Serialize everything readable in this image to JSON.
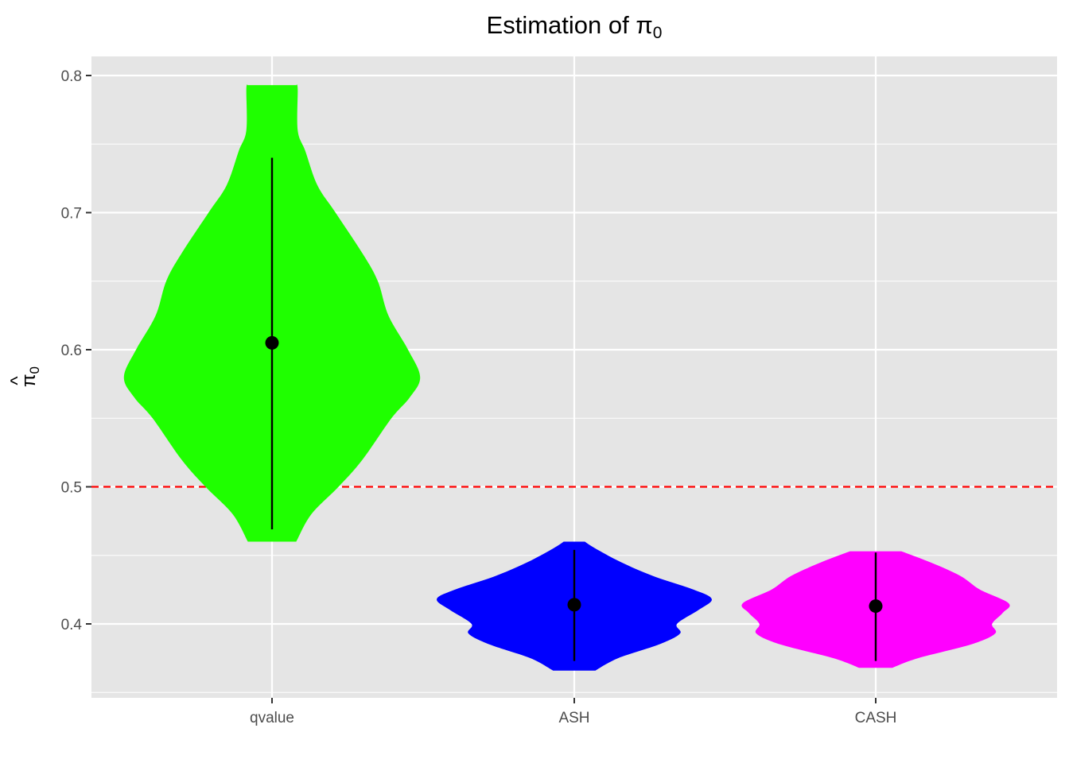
{
  "chart_data": {
    "type": "violin",
    "title": "Estimation of",
    "title_symbol": "π",
    "title_subscript": "0",
    "ylabel_symbol": "π",
    "ylabel_hat": "^",
    "ylabel_subscript": "0",
    "xlabel": "",
    "categories": [
      "qvalue",
      "ASH",
      "CASH"
    ],
    "ylim": [
      0.35,
      0.815
    ],
    "y_ticks": [
      0.4,
      0.5,
      0.6,
      0.7,
      0.8
    ],
    "y_tick_labels": [
      "0.4",
      "0.5",
      "0.6",
      "0.7",
      "0.8"
    ],
    "grid": true,
    "reference_line": {
      "y": 0.5,
      "style": "dashed",
      "color": "#ff0000"
    },
    "background": "#e5e5e5",
    "series": [
      {
        "category": "qvalue",
        "color": "#1fff00",
        "mean": 0.605,
        "interval": [
          0.469,
          0.74
        ],
        "violin_range": [
          0.46,
          0.793
        ],
        "density_y": [
          0.46,
          0.48,
          0.5,
          0.52,
          0.55,
          0.565,
          0.58,
          0.6,
          0.625,
          0.65,
          0.67,
          0.7,
          0.72,
          0.745,
          0.76,
          0.79,
          0.793
        ],
        "density_w": [
          0.16,
          0.26,
          0.44,
          0.6,
          0.79,
          0.91,
          0.98,
          0.9,
          0.77,
          0.7,
          0.6,
          0.42,
          0.3,
          0.22,
          0.17,
          0.17,
          0.16
        ]
      },
      {
        "category": "ASH",
        "color": "#0000ff",
        "mean": 0.414,
        "interval": [
          0.373,
          0.454
        ],
        "violin_range": [
          0.366,
          0.46
        ],
        "density_y": [
          0.366,
          0.375,
          0.385,
          0.393,
          0.4,
          0.41,
          0.418,
          0.425,
          0.435,
          0.445,
          0.455,
          0.46
        ],
        "density_w": [
          0.14,
          0.29,
          0.56,
          0.7,
          0.68,
          0.82,
          0.91,
          0.79,
          0.52,
          0.31,
          0.14,
          0.07
        ]
      },
      {
        "category": "CASH",
        "color": "#ff00ff",
        "mean": 0.413,
        "interval": [
          0.373,
          0.452
        ],
        "violin_range": [
          0.368,
          0.453
        ],
        "density_y": [
          0.368,
          0.375,
          0.385,
          0.393,
          0.4,
          0.408,
          0.415,
          0.425,
          0.435,
          0.445,
          0.453
        ],
        "density_w": [
          0.11,
          0.28,
          0.63,
          0.79,
          0.77,
          0.84,
          0.88,
          0.69,
          0.56,
          0.36,
          0.17
        ]
      }
    ]
  }
}
